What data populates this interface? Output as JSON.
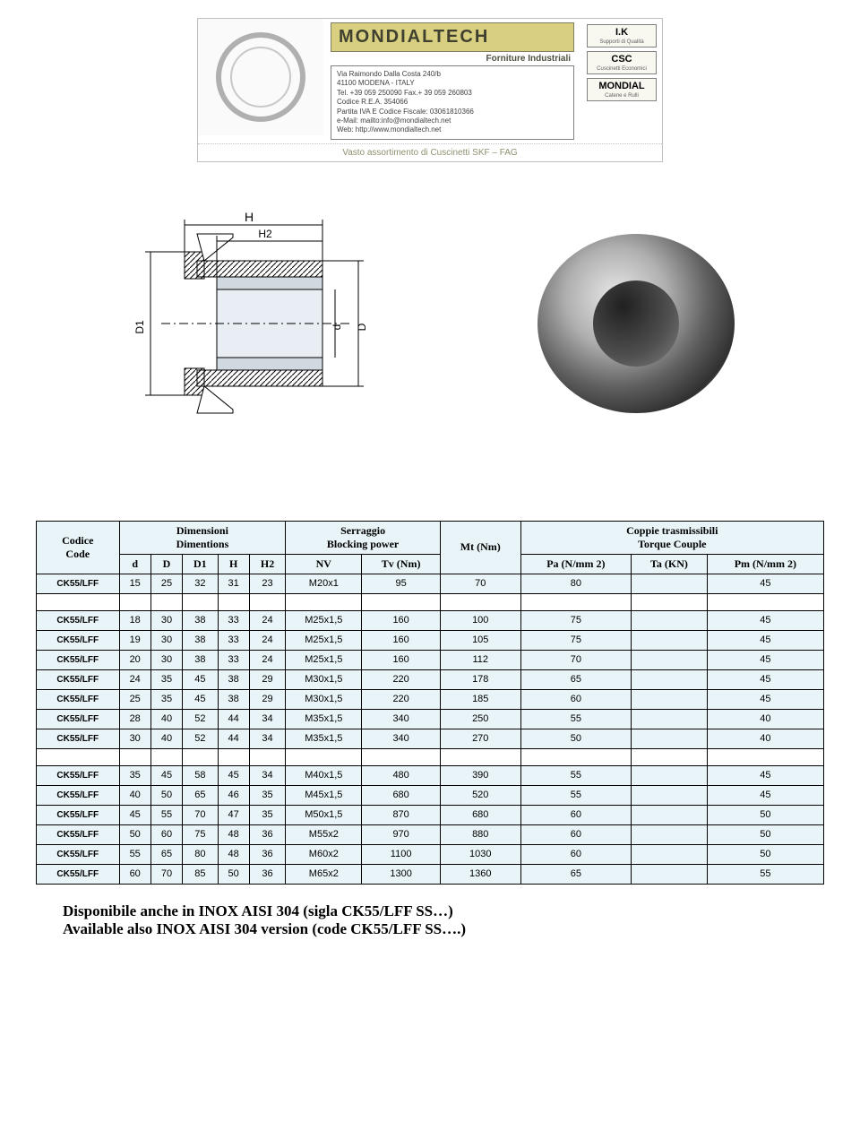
{
  "banner": {
    "company": "MONDIALTECH",
    "subtitle": "Forniture Industriali",
    "address": "Via Raimondo Dalla Costa 240/b\n41100 MODENA - ITALY\nTel. +39 059 250090  Fax.+ 39 059 260803\nCodice R.E.A. 354066\nPartita IVA E Codice Fiscale: 03061810366\ne-Mail:    mailto:info@mondialtech.net\nWeb:      http://www.mondialtech.net",
    "footer": "Vasto assortimento di Cuscinetti SKF – FAG",
    "brands": [
      {
        "main": "I.K",
        "sub": "Supporti di Qualità"
      },
      {
        "main": "CSC",
        "sub": "Cuscinetti Economici"
      },
      {
        "main": "MONDIAL",
        "sub": "Catene e Rulli"
      }
    ]
  },
  "drawing_labels": {
    "H": "H",
    "H2": "H2",
    "D1": "D1",
    "d": "d",
    "D": "D"
  },
  "table": {
    "header_groups": {
      "code": "Codice\nCode",
      "dimensions": "Dimensioni\nDimentions",
      "blocking": "Serraggio\nBlocking power",
      "torque": "Coppie trasmissibili\nTorque Couple"
    },
    "columns": [
      "d",
      "D",
      "D1",
      "H",
      "H2",
      "NV",
      "Tv (Nm)",
      "Mt (Nm)",
      "Pa (N/mm 2)",
      "Ta (KN)",
      "Pm (N/mm 2)"
    ],
    "header_bg": "#e8f4f8",
    "row_bg": "#e8f4f8",
    "border_color": "#000000",
    "code_label": "CK55/LFF",
    "blocks": [
      [
        [
          "15",
          "25",
          "32",
          "31",
          "23",
          "M20x1",
          "95",
          "70",
          "80",
          "",
          "45"
        ]
      ],
      [
        [
          "18",
          "30",
          "38",
          "33",
          "24",
          "M25x1,5",
          "160",
          "100",
          "75",
          "",
          "45"
        ],
        [
          "19",
          "30",
          "38",
          "33",
          "24",
          "M25x1,5",
          "160",
          "105",
          "75",
          "",
          "45"
        ],
        [
          "20",
          "30",
          "38",
          "33",
          "24",
          "M25x1,5",
          "160",
          "112",
          "70",
          "",
          "45"
        ],
        [
          "24",
          "35",
          "45",
          "38",
          "29",
          "M30x1,5",
          "220",
          "178",
          "65",
          "",
          "45"
        ],
        [
          "25",
          "35",
          "45",
          "38",
          "29",
          "M30x1,5",
          "220",
          "185",
          "60",
          "",
          "45"
        ],
        [
          "28",
          "40",
          "52",
          "44",
          "34",
          "M35x1,5",
          "340",
          "250",
          "55",
          "",
          "40"
        ],
        [
          "30",
          "40",
          "52",
          "44",
          "34",
          "M35x1,5",
          "340",
          "270",
          "50",
          "",
          "40"
        ]
      ],
      [
        [
          "35",
          "45",
          "58",
          "45",
          "34",
          "M40x1,5",
          "480",
          "390",
          "55",
          "",
          "45"
        ],
        [
          "40",
          "50",
          "65",
          "46",
          "35",
          "M45x1,5",
          "680",
          "520",
          "55",
          "",
          "45"
        ],
        [
          "45",
          "55",
          "70",
          "47",
          "35",
          "M50x1,5",
          "870",
          "680",
          "60",
          "",
          "50"
        ],
        [
          "50",
          "60",
          "75",
          "48",
          "36",
          "M55x2",
          "970",
          "880",
          "60",
          "",
          "50"
        ],
        [
          "55",
          "65",
          "80",
          "48",
          "36",
          "M60x2",
          "1100",
          "1030",
          "60",
          "",
          "50"
        ],
        [
          "60",
          "70",
          "85",
          "50",
          "36",
          "M65x2",
          "1300",
          "1360",
          "65",
          "",
          "55"
        ]
      ]
    ]
  },
  "notes": {
    "line1": "Disponibile anche in INOX AISI 304 (sigla CK55/LFF SS…)",
    "line2": "Available also INOX AISI 304 version (code CK55/LFF SS….)"
  }
}
